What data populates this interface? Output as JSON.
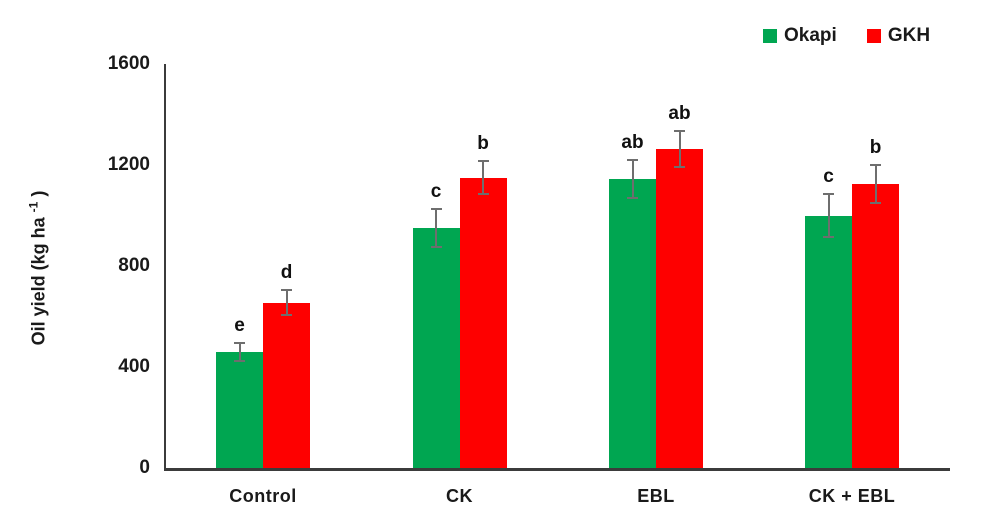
{
  "chart_data": {
    "type": "bar",
    "title": "",
    "categories": [
      "Control",
      "CK",
      "EBL",
      "CK + EBL"
    ],
    "series": [
      {
        "name": "Okapi",
        "color": "#00A651",
        "values": [
          460,
          950,
          1145,
          1000
        ],
        "error_bars": [
          40,
          80,
          80,
          90
        ],
        "sig_letters": [
          "e",
          "c",
          "ab",
          "c"
        ]
      },
      {
        "name": "GKH",
        "color": "#FE0000",
        "values": [
          655,
          1150,
          1265,
          1125
        ],
        "error_bars": [
          55,
          70,
          75,
          80
        ],
        "sig_letters": [
          "d",
          "b",
          "ab",
          "b"
        ]
      }
    ],
    "xlabel": "",
    "ylabel": "Oil yield (kg ha⁻¹ )",
    "ylabel_parts": {
      "prefix": "Oil yield (kg ha ",
      "superscript": "-1",
      "suffix": " )"
    },
    "ylim": [
      0,
      1600
    ],
    "yticks": [
      0,
      400,
      800,
      1200,
      1600
    ],
    "grid": false,
    "legend_position": "top-right",
    "colors": {
      "error_bar": "#6E6E6E",
      "axis_line": "#3B3B3B",
      "text": "#1A1A1A",
      "background": "#FFFFFF"
    }
  }
}
